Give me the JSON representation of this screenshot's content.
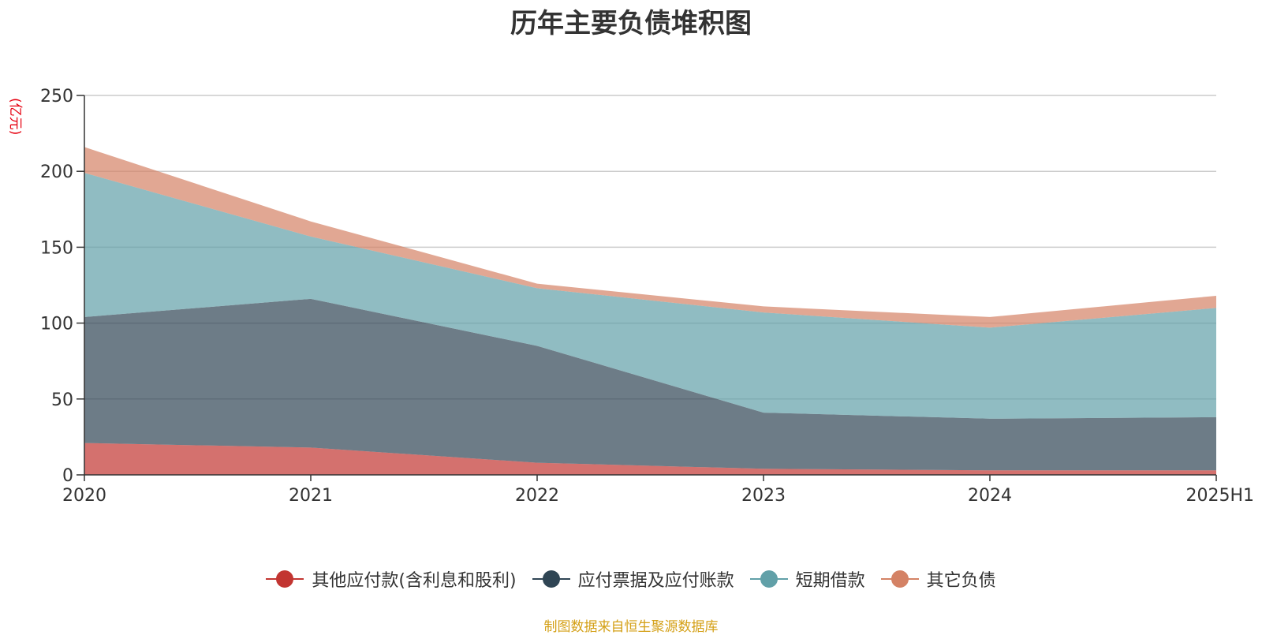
{
  "title": "历年主要负债堆积图",
  "unit_label": "(亿元)",
  "source": "制图数据来自恒生聚源数据库",
  "chart_data": {
    "type": "area",
    "stacked": true,
    "x": [
      "2020",
      "2021",
      "2022",
      "2023",
      "2024",
      "2025H1"
    ],
    "ylim": [
      0,
      250
    ],
    "yticks": [
      0,
      50,
      100,
      150,
      200,
      250
    ],
    "grid": true,
    "legend_position": "bottom",
    "series": [
      {
        "name": "其他应付款(含利息和股利)",
        "color": "#c23531",
        "values": [
          21,
          18,
          8,
          4,
          3,
          3
        ]
      },
      {
        "name": "应付票据及应付账款",
        "color": "#2f4554",
        "values": [
          83,
          98,
          77,
          37,
          34,
          35
        ]
      },
      {
        "name": "短期借款",
        "color": "#61a0a8",
        "values": [
          95,
          41,
          38,
          66,
          60,
          72
        ]
      },
      {
        "name": "其它负债",
        "color": "#d48265",
        "values": [
          17,
          10,
          3,
          4,
          7,
          8
        ]
      }
    ]
  }
}
